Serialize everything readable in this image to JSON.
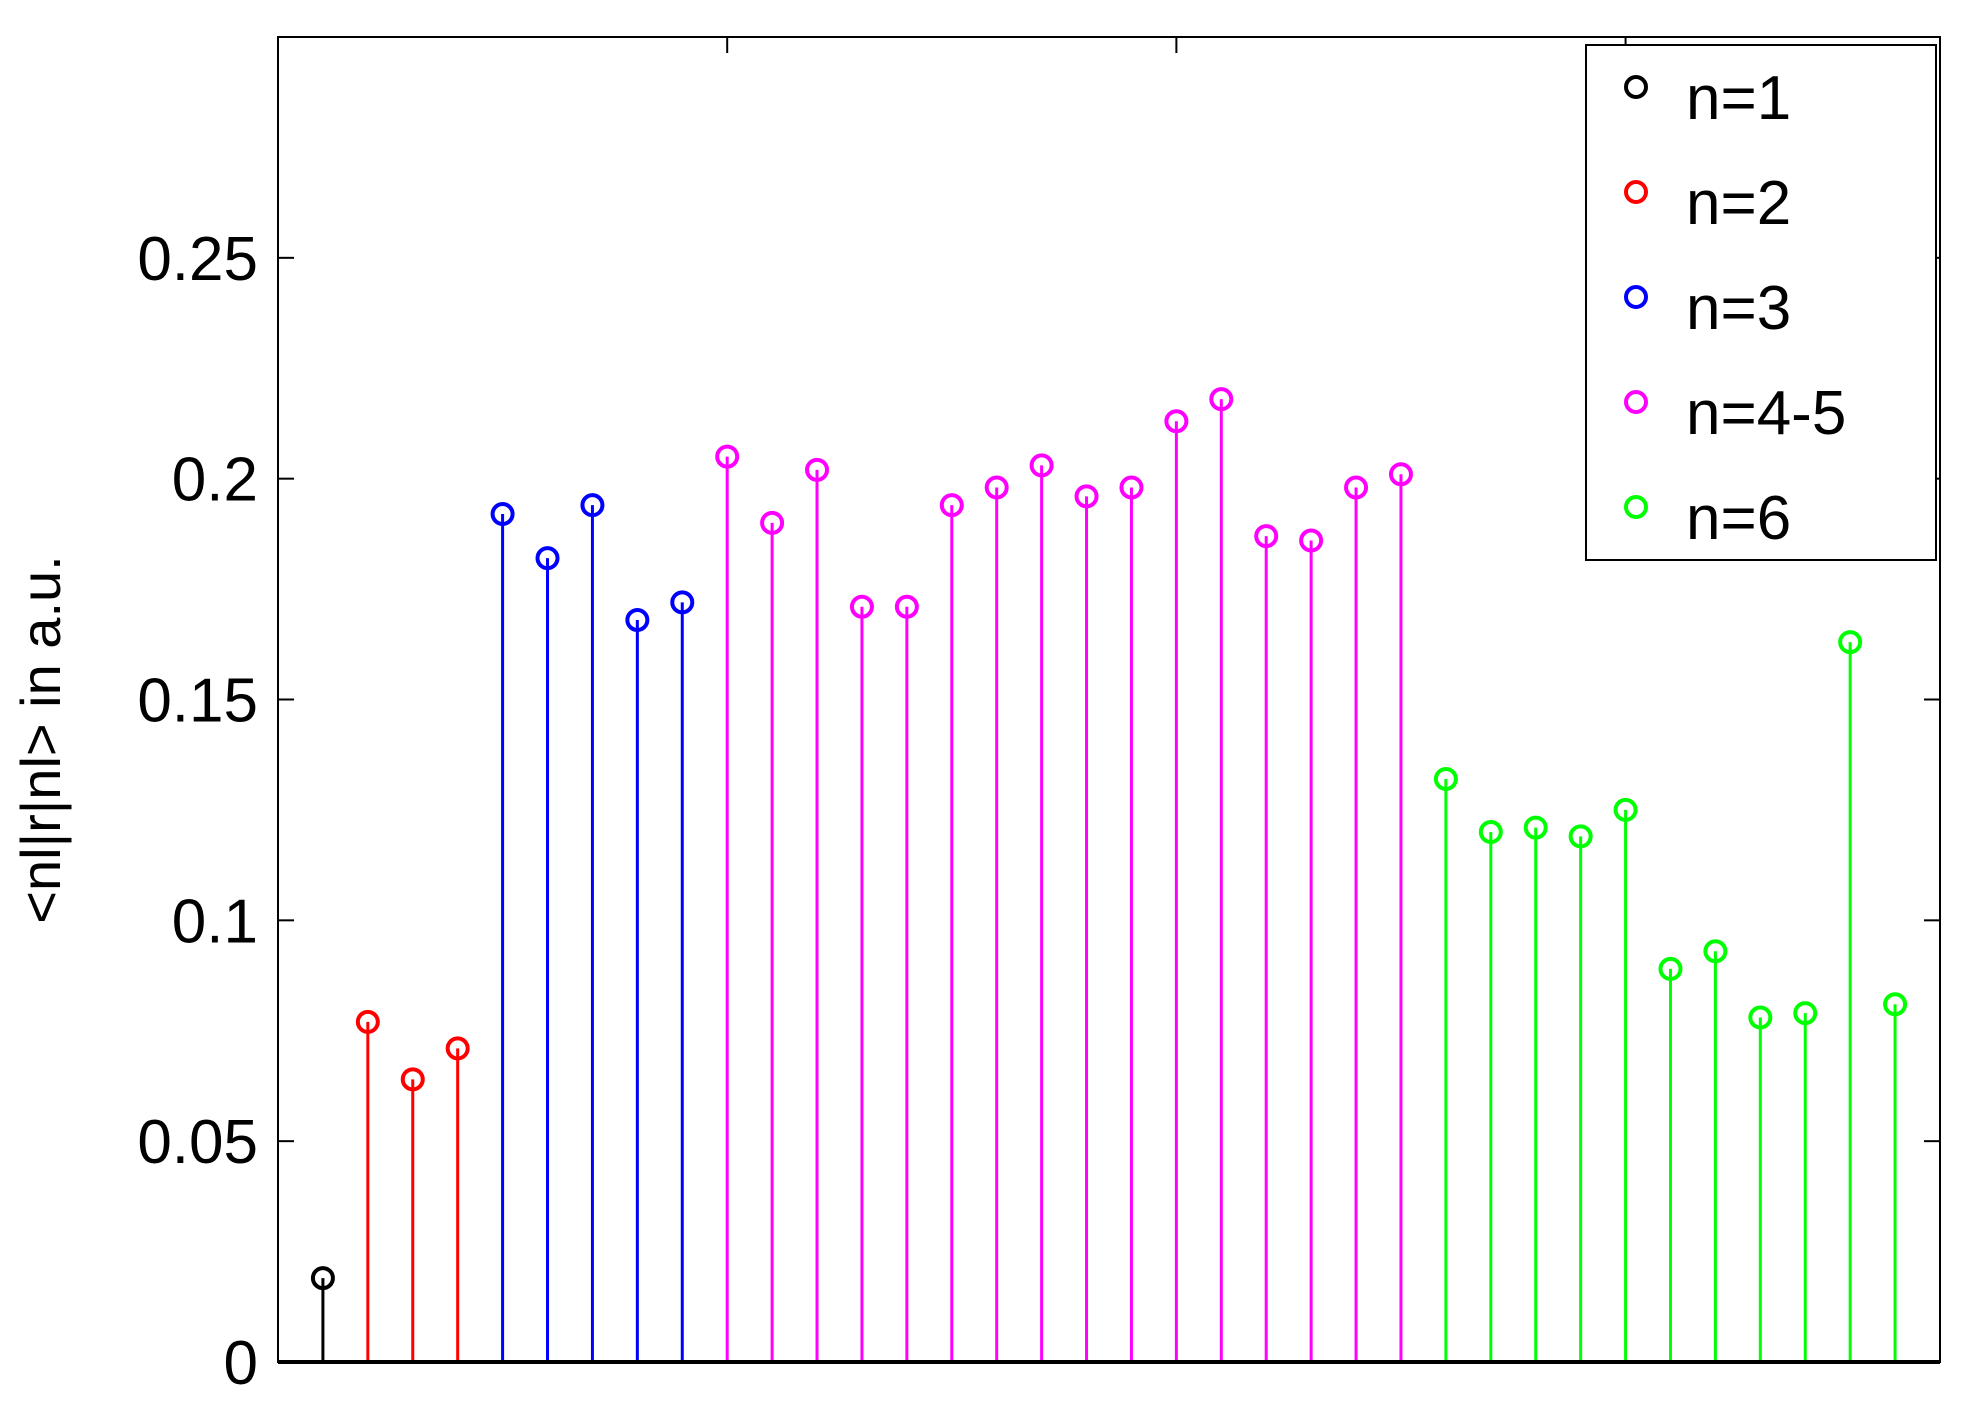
{
  "chart_data": {
    "type": "stem",
    "title": "",
    "xlabel": "",
    "ylabel": "<nl|r|nl> in a.u.",
    "ylim": [
      0,
      0.3
    ],
    "yticks": [
      0,
      0.05,
      0.1,
      0.15,
      0.2,
      0.25
    ],
    "ytick_labels": [
      "0",
      "0.05",
      "0.1",
      "0.15",
      "0.2",
      "0.25"
    ],
    "xlim": [
      0,
      37
    ],
    "legend_position": "top-right",
    "marker": "open-circle",
    "series": [
      {
        "name": "n=1",
        "color": "#000000",
        "x": [
          1
        ],
        "values": [
          0.019
        ]
      },
      {
        "name": "n=2",
        "color": "#ff0000",
        "x": [
          2,
          3,
          4
        ],
        "values": [
          0.077,
          0.064,
          0.071
        ]
      },
      {
        "name": "n=3",
        "color": "#0000ff",
        "x": [
          5,
          6,
          7,
          8,
          9
        ],
        "values": [
          0.192,
          0.182,
          0.194,
          0.168,
          0.172
        ]
      },
      {
        "name": "n=4-5",
        "color": "#ff00ff",
        "x": [
          10,
          11,
          12,
          13,
          14,
          15,
          16,
          17,
          18,
          19,
          20,
          21,
          22,
          23,
          24,
          25
        ],
        "values": [
          0.205,
          0.19,
          0.202,
          0.171,
          0.171,
          0.194,
          0.198,
          0.203,
          0.196,
          0.198,
          0.213,
          0.218,
          0.187,
          0.186,
          0.198,
          0.201
        ]
      },
      {
        "name": "n=6",
        "color": "#00ff00",
        "x": [
          26,
          27,
          28,
          29,
          30,
          31,
          32,
          33,
          34,
          35,
          36
        ],
        "values": [
          0.132,
          0.12,
          0.121,
          0.119,
          0.125,
          0.089,
          0.093,
          0.078,
          0.079,
          0.163,
          0.081
        ]
      }
    ]
  }
}
